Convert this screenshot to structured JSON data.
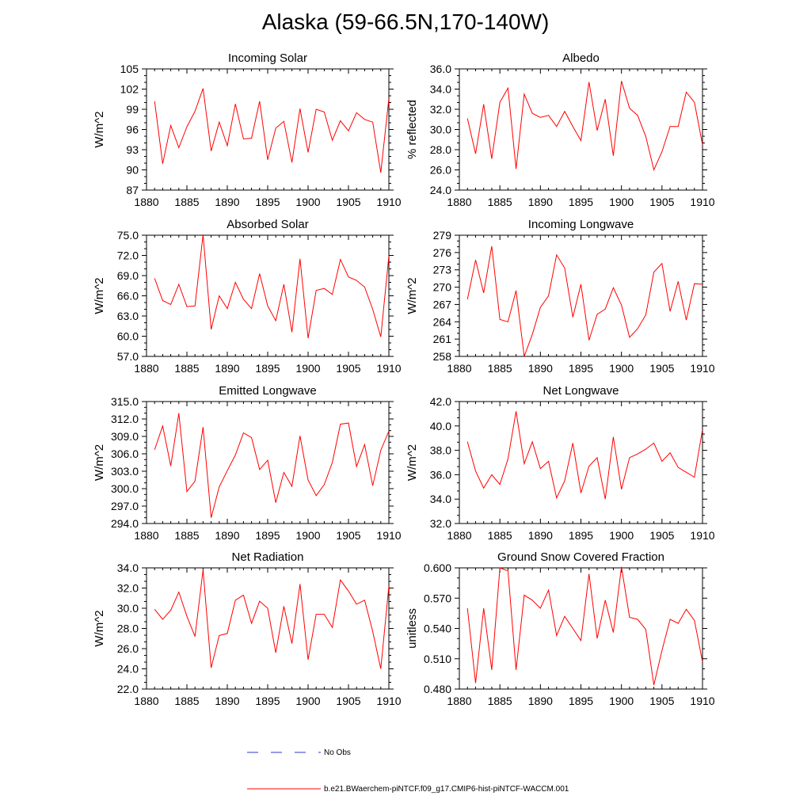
{
  "page_title": "Alaska (59-66.5N,170-140W)",
  "legend": {
    "obs_label": "No Obs",
    "obs_color": "#3333cc",
    "model_label": "b.e21.BWaerchem-piNTCF.f09_g17.CMIP6-hist-piNTCF-WACCM.001",
    "model_color": "#ff0000"
  },
  "chart_data": [
    {
      "type": "line",
      "title": "Incoming Solar",
      "ylabel": "W/m^2",
      "xlim": [
        1880,
        1910
      ],
      "ylim": [
        87,
        105
      ],
      "x_ticks": [
        "1880",
        "1885",
        "1890",
        "1895",
        "1900",
        "1905",
        "1910"
      ],
      "y_ticks": [
        "87",
        "90",
        "93",
        "96",
        "99",
        "102",
        "105"
      ],
      "x": [
        1881,
        1882,
        1883,
        1884,
        1885,
        1886,
        1887,
        1888,
        1889,
        1890,
        1891,
        1892,
        1893,
        1894,
        1895,
        1896,
        1897,
        1898,
        1899,
        1900,
        1901,
        1902,
        1903,
        1904,
        1905,
        1906,
        1907,
        1908,
        1909,
        1910
      ],
      "series": [
        {
          "color": "#ff0000",
          "values": [
            100.2,
            90.9,
            96.6,
            93.3,
            96.4,
            98.7,
            102.1,
            92.8,
            97.1,
            93.6,
            99.8,
            94.6,
            94.7,
            100.2,
            91.5,
            96.2,
            97.2,
            91.1,
            99.1,
            92.6,
            99.0,
            98.6,
            94.4,
            97.3,
            95.8,
            98.5,
            97.5,
            97.1,
            89.6,
            100.6
          ]
        }
      ]
    },
    {
      "type": "line",
      "title": "Albedo",
      "ylabel": "% reflected",
      "xlim": [
        1880,
        1910
      ],
      "ylim": [
        24,
        36
      ],
      "x_ticks": [
        "1880",
        "1885",
        "1890",
        "1895",
        "1900",
        "1905",
        "1910"
      ],
      "y_ticks": [
        "24.0",
        "26.0",
        "28.0",
        "30.0",
        "32.0",
        "34.0",
        "36.0"
      ],
      "x": [
        1881,
        1882,
        1883,
        1884,
        1885,
        1886,
        1887,
        1888,
        1889,
        1890,
        1891,
        1892,
        1893,
        1894,
        1895,
        1896,
        1897,
        1898,
        1899,
        1900,
        1901,
        1902,
        1903,
        1904,
        1905,
        1906,
        1907,
        1908,
        1909,
        1910
      ],
      "series": [
        {
          "color": "#ff0000",
          "values": [
            31.1,
            27.6,
            32.5,
            27.1,
            32.7,
            34.1,
            26.1,
            33.5,
            31.6,
            31.2,
            31.4,
            30.3,
            31.8,
            30.3,
            28.9,
            34.7,
            29.9,
            33.0,
            27.4,
            34.8,
            32.1,
            31.4,
            29.3,
            26.0,
            27.8,
            30.3,
            30.3,
            33.7,
            32.7,
            28.5
          ]
        }
      ]
    },
    {
      "type": "line",
      "title": "Absorbed Solar",
      "ylabel": "W/m^2",
      "xlim": [
        1880,
        1910
      ],
      "ylim": [
        57,
        75
      ],
      "x_ticks": [
        "1880",
        "1885",
        "1890",
        "1895",
        "1900",
        "1905",
        "1910"
      ],
      "y_ticks": [
        "57.0",
        "60.0",
        "63.0",
        "66.0",
        "69.0",
        "72.0",
        "75.0"
      ],
      "x": [
        1881,
        1882,
        1883,
        1884,
        1885,
        1886,
        1887,
        1888,
        1889,
        1890,
        1891,
        1892,
        1893,
        1894,
        1895,
        1896,
        1897,
        1898,
        1899,
        1900,
        1901,
        1902,
        1903,
        1904,
        1905,
        1906,
        1907,
        1908,
        1909,
        1910
      ],
      "series": [
        {
          "color": "#ff0000",
          "values": [
            68.6,
            65.3,
            64.7,
            67.7,
            64.4,
            64.5,
            75.1,
            61.0,
            66.0,
            64.1,
            68.0,
            65.5,
            64.1,
            69.3,
            64.5,
            62.3,
            67.7,
            60.6,
            71.5,
            59.7,
            66.8,
            67.1,
            66.2,
            71.4,
            68.8,
            68.3,
            67.3,
            64.0,
            59.9,
            71.9
          ]
        }
      ]
    },
    {
      "type": "line",
      "title": "Incoming Longwave",
      "ylabel": "W/m^2",
      "xlim": [
        1880,
        1910
      ],
      "ylim": [
        258,
        279
      ],
      "x_ticks": [
        "1880",
        "1885",
        "1890",
        "1895",
        "1900",
        "1905",
        "1910"
      ],
      "y_ticks": [
        "258",
        "261",
        "264",
        "267",
        "270",
        "273",
        "276",
        "279"
      ],
      "x": [
        1881,
        1882,
        1883,
        1884,
        1885,
        1886,
        1887,
        1888,
        1889,
        1890,
        1891,
        1892,
        1893,
        1894,
        1895,
        1896,
        1897,
        1898,
        1899,
        1900,
        1901,
        1902,
        1903,
        1904,
        1905,
        1906,
        1907,
        1908,
        1909,
        1910
      ],
      "series": [
        {
          "color": "#ff0000",
          "values": [
            267.9,
            274.7,
            269.0,
            277.1,
            264.4,
            264.0,
            269.4,
            258.0,
            261.8,
            266.5,
            268.5,
            275.6,
            273.3,
            264.8,
            270.5,
            260.8,
            265.3,
            266.2,
            269.9,
            266.9,
            261.3,
            262.8,
            265.2,
            272.6,
            274.1,
            265.8,
            271.0,
            264.3,
            270.6,
            270.5
          ]
        }
      ]
    },
    {
      "type": "line",
      "title": "Emitted Longwave",
      "ylabel": "W/m^2",
      "xlim": [
        1880,
        1910
      ],
      "ylim": [
        294,
        315
      ],
      "x_ticks": [
        "1880",
        "1885",
        "1890",
        "1895",
        "1900",
        "1905",
        "1910"
      ],
      "y_ticks": [
        "294.0",
        "297.0",
        "300.0",
        "303.0",
        "306.0",
        "309.0",
        "312.0",
        "315.0"
      ],
      "x": [
        1881,
        1882,
        1883,
        1884,
        1885,
        1886,
        1887,
        1888,
        1889,
        1890,
        1891,
        1892,
        1893,
        1894,
        1895,
        1896,
        1897,
        1898,
        1899,
        1900,
        1901,
        1902,
        1903,
        1904,
        1905,
        1906,
        1907,
        1908,
        1909,
        1910
      ],
      "series": [
        {
          "color": "#ff0000",
          "values": [
            306.7,
            310.8,
            303.9,
            313.0,
            299.5,
            301.3,
            310.6,
            295.0,
            300.3,
            303.1,
            305.8,
            309.6,
            308.8,
            303.3,
            304.9,
            297.6,
            302.8,
            300.4,
            309.1,
            301.5,
            298.8,
            300.7,
            304.5,
            311.1,
            311.3,
            303.8,
            307.6,
            300.5,
            306.6,
            309.9
          ]
        }
      ]
    },
    {
      "type": "line",
      "title": "Net Longwave",
      "ylabel": "W/m^2",
      "xlim": [
        1880,
        1910
      ],
      "ylim": [
        32,
        42
      ],
      "x_ticks": [
        "1880",
        "1885",
        "1890",
        "1895",
        "1900",
        "1905",
        "1910"
      ],
      "y_ticks": [
        "32.0",
        "34.0",
        "36.0",
        "38.0",
        "40.0",
        "42.0"
      ],
      "x": [
        1881,
        1882,
        1883,
        1884,
        1885,
        1886,
        1887,
        1888,
        1889,
        1890,
        1891,
        1892,
        1893,
        1894,
        1895,
        1896,
        1897,
        1898,
        1899,
        1900,
        1901,
        1902,
        1903,
        1904,
        1905,
        1906,
        1907,
        1908,
        1909,
        1910
      ],
      "series": [
        {
          "color": "#ff0000",
          "values": [
            38.7,
            36.3,
            34.9,
            36.0,
            35.2,
            37.3,
            41.2,
            36.9,
            38.7,
            36.5,
            37.1,
            34.1,
            35.5,
            38.6,
            34.5,
            36.7,
            37.4,
            34.0,
            39.1,
            34.8,
            37.4,
            37.7,
            38.1,
            38.6,
            37.1,
            37.8,
            36.6,
            36.2,
            35.8,
            39.7
          ]
        }
      ]
    },
    {
      "type": "line",
      "title": "Net Radiation",
      "ylabel": "W/m^2",
      "xlim": [
        1880,
        1910
      ],
      "ylim": [
        22,
        34
      ],
      "x_ticks": [
        "1880",
        "1885",
        "1890",
        "1895",
        "1900",
        "1905",
        "1910"
      ],
      "y_ticks": [
        "22.0",
        "24.0",
        "26.0",
        "28.0",
        "30.0",
        "32.0",
        "34.0"
      ],
      "x": [
        1881,
        1882,
        1883,
        1884,
        1885,
        1886,
        1887,
        1888,
        1889,
        1890,
        1891,
        1892,
        1893,
        1894,
        1895,
        1896,
        1897,
        1898,
        1899,
        1900,
        1901,
        1902,
        1903,
        1904,
        1905,
        1906,
        1907,
        1908,
        1909,
        1910
      ],
      "series": [
        {
          "color": "#ff0000",
          "values": [
            29.9,
            28.9,
            29.8,
            31.6,
            29.2,
            27.2,
            33.8,
            24.1,
            27.3,
            27.5,
            30.8,
            31.3,
            28.5,
            30.7,
            30.0,
            25.6,
            30.2,
            26.5,
            32.4,
            24.9,
            29.4,
            29.4,
            28.1,
            32.8,
            31.7,
            30.4,
            30.8,
            27.7,
            24.0,
            32.2
          ]
        }
      ]
    },
    {
      "type": "line",
      "title": "Ground Snow Covered Fraction",
      "ylabel": "unitless",
      "xlim": [
        1880,
        1910
      ],
      "ylim": [
        0.48,
        0.6
      ],
      "x_ticks": [
        "1880",
        "1885",
        "1890",
        "1895",
        "1900",
        "1905",
        "1910"
      ],
      "y_ticks": [
        "0.480",
        "0.510",
        "0.540",
        "0.570",
        "0.600"
      ],
      "x": [
        1881,
        1882,
        1883,
        1884,
        1885,
        1886,
        1887,
        1888,
        1889,
        1890,
        1891,
        1892,
        1893,
        1894,
        1895,
        1896,
        1897,
        1898,
        1899,
        1900,
        1901,
        1902,
        1903,
        1904,
        1905,
        1906,
        1907,
        1908,
        1909,
        1910
      ],
      "series": [
        {
          "color": "#ff0000",
          "values": [
            0.56,
            0.486,
            0.56,
            0.499,
            0.6,
            0.597,
            0.499,
            0.573,
            0.568,
            0.56,
            0.578,
            0.533,
            0.552,
            0.54,
            0.528,
            0.594,
            0.53,
            0.568,
            0.536,
            0.601,
            0.551,
            0.549,
            0.539,
            0.484,
            0.518,
            0.549,
            0.545,
            0.559,
            0.548,
            0.507
          ]
        }
      ]
    }
  ]
}
